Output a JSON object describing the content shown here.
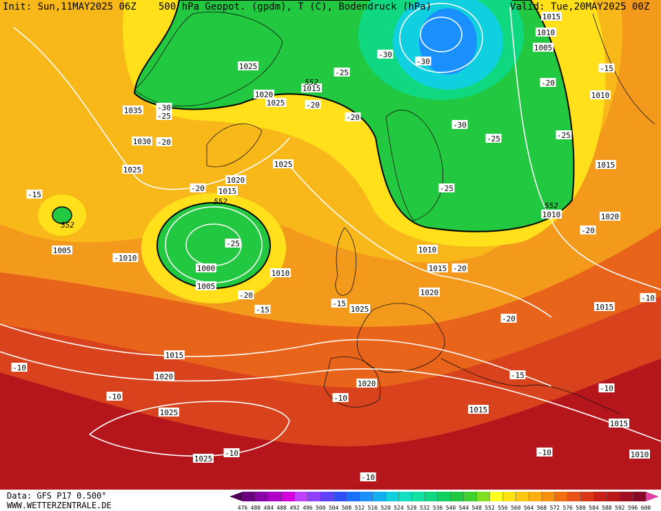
{
  "header": {
    "init": "Init: Sun,11MAY2025 06Z",
    "title": "500 hPa Geopot. (gpdm), T (C), Bodendruck (hPa)",
    "valid": "Valid: Tue,20MAY2025 00Z"
  },
  "footer": {
    "source": "Data: GFS P17 0.500°",
    "site": "WWW.WETTERZENTRALE.DE"
  },
  "colorbar": {
    "ticks": [
      476,
      480,
      484,
      488,
      492,
      496,
      500,
      504,
      508,
      512,
      516,
      520,
      524,
      528,
      532,
      536,
      540,
      544,
      548,
      552,
      556,
      560,
      564,
      568,
      572,
      576,
      580,
      584,
      588,
      592,
      596,
      600
    ],
    "colors": [
      "#4b0055",
      "#6a0080",
      "#8a00a8",
      "#b000c8",
      "#d400e0",
      "#c040ff",
      "#9040ff",
      "#6040ff",
      "#3050ff",
      "#1a70ff",
      "#1a90ff",
      "#10b0f0",
      "#10d0e0",
      "#10e0c0",
      "#10e0a0",
      "#10d880",
      "#10d060",
      "#20c840",
      "#40d030",
      "#80e020",
      "#ffff20",
      "#ffe010",
      "#ffc810",
      "#ffb010",
      "#f89010",
      "#f07010",
      "#e85018",
      "#d83818",
      "#c82018",
      "#b81818",
      "#a01020",
      "#880828",
      "#e040a0"
    ]
  },
  "map_labels": [
    "1025",
    "1020",
    "1015",
    "1025",
    "-20",
    "-30",
    "-25",
    "1035",
    "1030",
    "-20",
    "1025",
    "-20",
    "1020",
    "1015",
    "552",
    "-15",
    "552",
    "1005",
    "-1010",
    "-25",
    "1000",
    "1010",
    "1005",
    "-20",
    "-15",
    "-15",
    "1025",
    "1015",
    "1020",
    "-10",
    "-10",
    "1025",
    "1025",
    "-10",
    "-10",
    "-10",
    "1020",
    "1015",
    "-15",
    "1020",
    "-20",
    "1015",
    "-20",
    "1010",
    "552",
    "1010",
    "1020",
    "-20",
    "1015",
    "-10",
    "-10",
    "1015",
    "-10",
    "1010",
    "1015",
    "-25",
    "-25",
    "-30",
    "-25",
    "-20",
    "-25",
    "-30",
    "-30",
    "1015",
    "1010",
    "1005",
    "-20",
    "1010",
    "-15",
    "1025",
    "552"
  ]
}
